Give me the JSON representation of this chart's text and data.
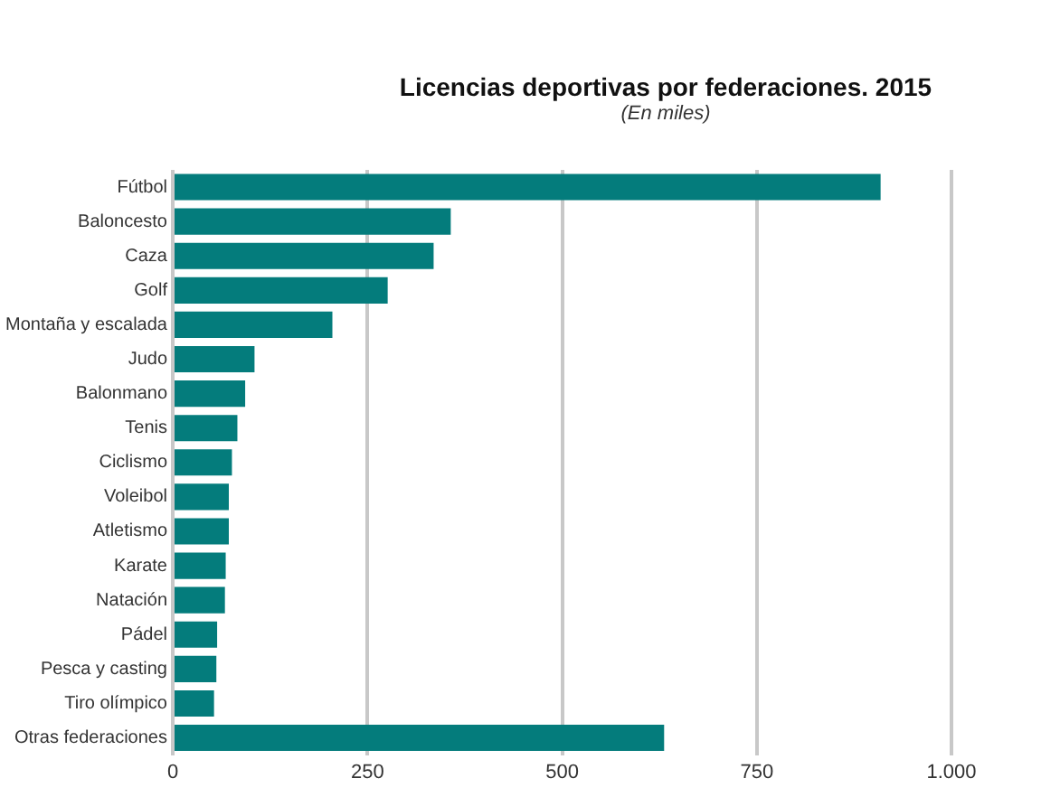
{
  "chart_data": {
    "type": "bar",
    "orientation": "horizontal",
    "title": "Licencias deportivas por federaciones. 2015",
    "subtitle": "(En miles)",
    "categories": [
      "Fútbol",
      "Baloncesto",
      "Caza",
      "Golf",
      "Montaña y escalada",
      "Judo",
      "Balonmano",
      "Tenis",
      "Ciclismo",
      "Voleibol",
      "Atletismo",
      "Karate",
      "Natación",
      "Pádel",
      "Pesca y casting",
      "Tiro olímpico",
      "Otras federaciones"
    ],
    "values": [
      909,
      357,
      335,
      276,
      205,
      105,
      93,
      83,
      76,
      72,
      72,
      68,
      67,
      57,
      56,
      53,
      631
    ],
    "color": "#047c7c",
    "xlim": [
      0,
      1000
    ],
    "xticks": [
      0,
      250,
      500,
      750,
      {
        "value": 1000,
        "label": "1.000"
      }
    ],
    "grid": "x",
    "legend": false
  }
}
